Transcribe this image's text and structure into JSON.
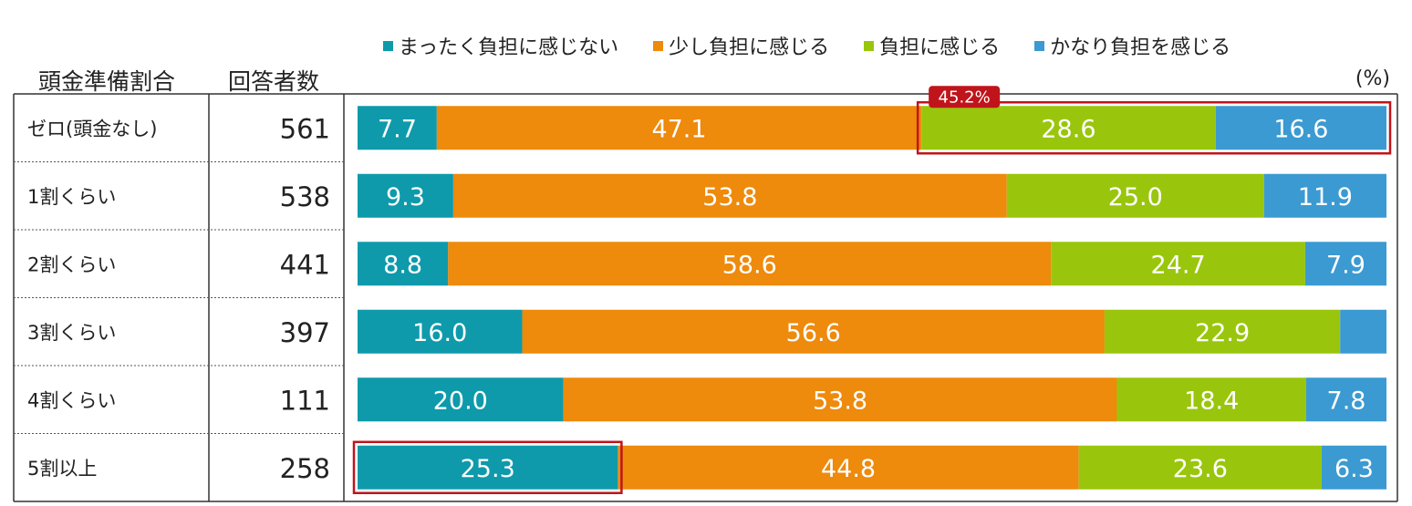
{
  "header": {
    "col1": "頭金準備割合",
    "col2": "回答者数",
    "unit": "(%)"
  },
  "legend": [
    {
      "label": "まったく負担に感じない",
      "color": "#0e9aab"
    },
    {
      "label": "少し負担に感じる",
      "color": "#ee8a0c"
    },
    {
      "label": "負担に感じる",
      "color": "#99c60c"
    },
    {
      "label": "かなり負担を感じる",
      "color": "#3b9ad1"
    }
  ],
  "colors": {
    "highlight": "#c0141b",
    "badge_bg": "#c0141b",
    "grid": "#444444"
  },
  "chart_data": {
    "type": "bar",
    "orientation": "horizontal",
    "stacked": true,
    "xlim": [
      0,
      100
    ],
    "categories": [
      "ゼロ(頭金なし)",
      "1割くらい",
      "2割くらい",
      "3割くらい",
      "4割くらい",
      "5割以上"
    ],
    "respondents": [
      "561",
      "538",
      "441",
      "397",
      "111",
      "258"
    ],
    "series": [
      {
        "name": "まったく負担に感じない",
        "values": [
          7.7,
          9.3,
          8.8,
          16.0,
          20.0,
          25.3
        ],
        "labels": [
          "7.7",
          "9.3",
          "8.8",
          "16.0",
          "20.0",
          "25.3"
        ]
      },
      {
        "name": "少し負担に感じる",
        "values": [
          47.1,
          53.8,
          58.6,
          56.6,
          53.8,
          44.8
        ],
        "labels": [
          "47.1",
          "53.8",
          "58.6",
          "56.6",
          "53.8",
          "44.8"
        ]
      },
      {
        "name": "負担に感じる",
        "values": [
          28.6,
          25.0,
          24.7,
          22.9,
          18.4,
          23.6
        ],
        "labels": [
          "28.6",
          "25.0",
          "24.7",
          "22.9",
          "18.4",
          "23.6"
        ]
      },
      {
        "name": "かなり負担を感じる",
        "values": [
          16.6,
          11.9,
          7.9,
          4.5,
          7.8,
          6.3
        ],
        "labels": [
          "16.6",
          "11.9",
          "7.9",
          "",
          "7.8",
          "6.3"
        ]
      }
    ],
    "annotations": [
      {
        "text": "45.2%",
        "row": 0,
        "series_from": 2,
        "series_to": 3
      },
      {
        "text": "",
        "row": 5,
        "series_from": 0,
        "series_to": 0
      }
    ]
  }
}
